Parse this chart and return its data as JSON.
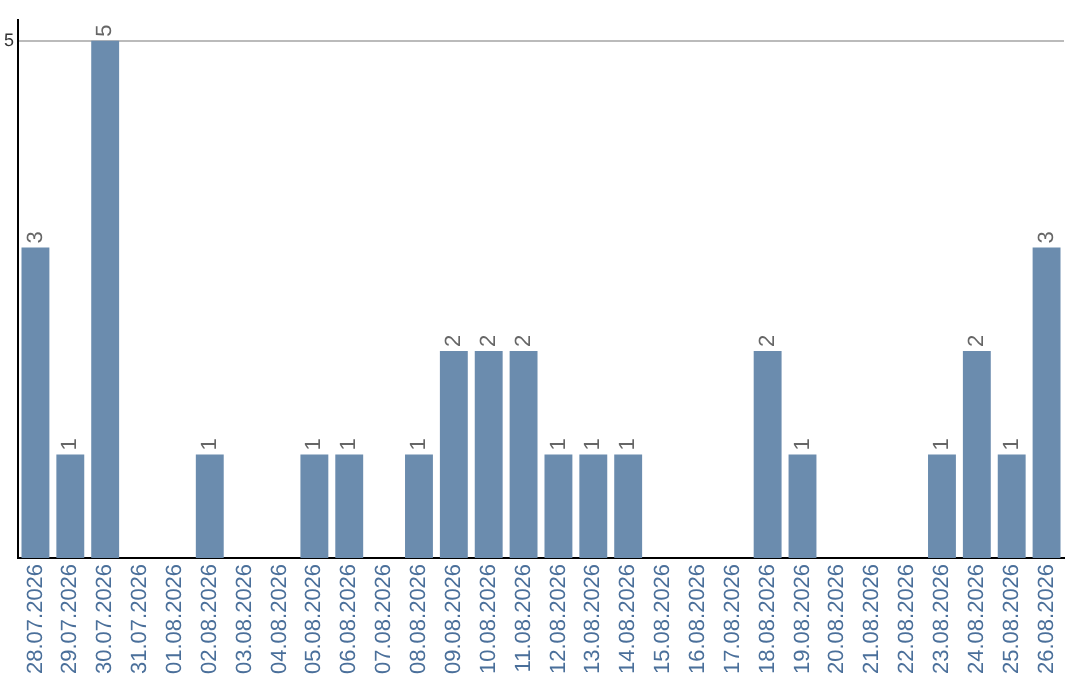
{
  "chart_data": {
    "type": "bar",
    "categories": [
      "28.07.2026",
      "29.07.2026",
      "30.07.2026",
      "31.07.2026",
      "01.08.2026",
      "02.08.2026",
      "03.08.2026",
      "04.08.2026",
      "05.08.2026",
      "06.08.2026",
      "07.08.2026",
      "08.08.2026",
      "09.08.2026",
      "10.08.2026",
      "11.08.2026",
      "12.08.2026",
      "13.08.2026",
      "14.08.2026",
      "15.08.2026",
      "16.08.2026",
      "17.08.2026",
      "18.08.2026",
      "19.08.2026",
      "20.08.2026",
      "21.08.2026",
      "22.08.2026",
      "23.08.2026",
      "24.08.2026",
      "25.08.2026",
      "26.08.2026"
    ],
    "values": [
      3,
      1,
      5,
      null,
      null,
      1,
      null,
      null,
      1,
      1,
      null,
      1,
      2,
      2,
      2,
      1,
      1,
      1,
      null,
      null,
      null,
      2,
      1,
      null,
      null,
      null,
      1,
      2,
      1,
      3
    ],
    "color": "#6b8cae",
    "ylim": [
      0,
      5.2
    ],
    "yticks": [
      5
    ],
    "grid": "y",
    "data_labels": true,
    "legend": false
  }
}
